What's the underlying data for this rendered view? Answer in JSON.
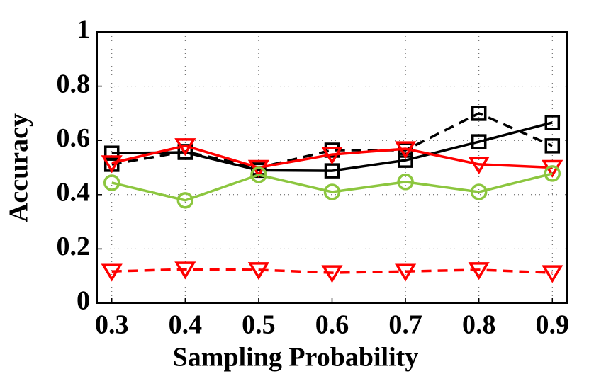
{
  "chart_data": {
    "type": "line",
    "xlabel": "Sampling Probability",
    "ylabel": "Accuracy",
    "x": [
      0.3,
      0.4,
      0.5,
      0.6,
      0.7,
      0.8,
      0.9
    ],
    "xlim": [
      0.28,
      0.92
    ],
    "xticks": [
      0.3,
      0.4,
      0.5,
      0.6,
      0.7,
      0.8,
      0.9
    ],
    "ylim": [
      0,
      1
    ],
    "yticks": [
      0,
      0.2,
      0.4,
      0.6,
      0.8,
      1
    ],
    "grid": true,
    "series": [
      {
        "color": "#000000",
        "marker": "square",
        "dash": false,
        "values": [
          0.553,
          0.556,
          0.49,
          0.488,
          0.527,
          0.595,
          0.666
        ]
      },
      {
        "color": "#000000",
        "marker": "square",
        "dash": true,
        "values": [
          0.512,
          0.559,
          0.499,
          0.564,
          0.564,
          0.7,
          0.58
        ]
      },
      {
        "color": "#ff0000",
        "marker": "triangle",
        "dash": false,
        "values": [
          0.517,
          0.58,
          0.5,
          0.548,
          0.569,
          0.512,
          0.5
        ]
      },
      {
        "color": "#8cc63f",
        "marker": "circle",
        "dash": false,
        "values": [
          0.444,
          0.379,
          0.473,
          0.41,
          0.447,
          0.41,
          0.478
        ]
      },
      {
        "color": "#ff0000",
        "marker": "triangle",
        "dash": true,
        "values": [
          0.117,
          0.125,
          0.123,
          0.112,
          0.117,
          0.123,
          0.112
        ]
      }
    ]
  }
}
